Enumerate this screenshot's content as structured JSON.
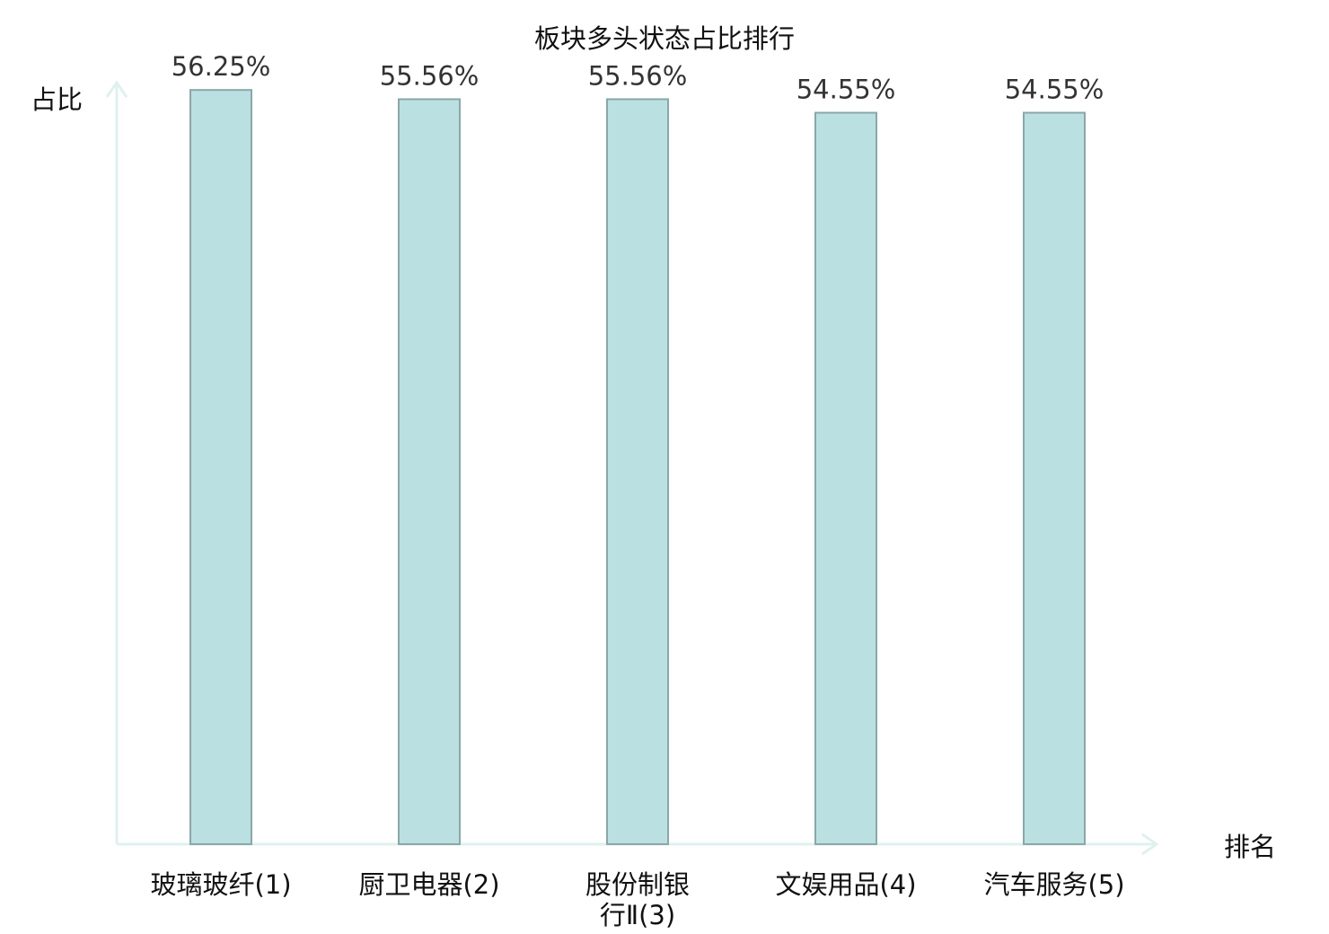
{
  "chart_data": {
    "type": "bar",
    "title": "板块多头状态占比排行",
    "ylabel": "占比",
    "xlabel": "排名",
    "categories": [
      [
        "玻璃玻纤(1)"
      ],
      [
        "厨卫电器(2)"
      ],
      [
        "股份制银",
        "行Ⅱ(3)"
      ],
      [
        "文娱用品(4)"
      ],
      [
        "汽车服务(5)"
      ]
    ],
    "values": [
      56.25,
      55.56,
      55.56,
      54.55,
      54.55
    ],
    "value_labels": [
      "56.25%",
      "55.56%",
      "55.56%",
      "54.55%",
      "54.55%"
    ],
    "highlight_index": 3,
    "ylim": [
      0,
      57.6
    ],
    "grid": false,
    "legend": "none"
  },
  "colors": {
    "bar_fill": "#bbe0e1",
    "bar_stroke": "#8aa7a8",
    "axis": "#dff1ef",
    "highlight_text": "#e00000",
    "text": "#111111",
    "value_text": "#333333"
  }
}
